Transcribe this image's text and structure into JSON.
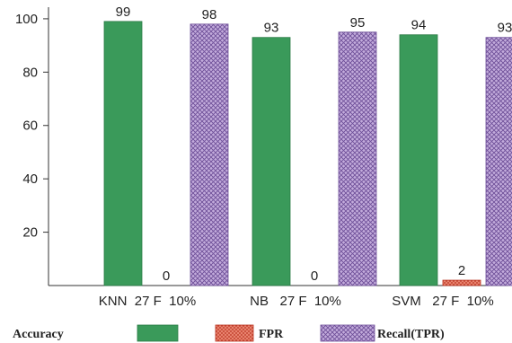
{
  "chart_data": {
    "type": "bar",
    "categories": [
      "KNN  27 F  10%",
      "NB   27 F  10%",
      "SVM   27 F  10%"
    ],
    "series": [
      {
        "name": "Accuracy",
        "values": [
          99,
          93,
          94
        ],
        "color": "#3a9a5a",
        "pattern": "solid"
      },
      {
        "name": "FPR",
        "values": [
          0,
          0,
          2
        ],
        "color": "#e05a40",
        "pattern": "dots"
      },
      {
        "name": "Recall(TPR)",
        "values": [
          98,
          95,
          93
        ],
        "color": "#a98cc9",
        "pattern": "crosshatch"
      }
    ],
    "yticks": [
      20,
      40,
      60,
      80,
      100
    ],
    "ylim": [
      0,
      103
    ],
    "grid": false,
    "legend_position": "bottom"
  }
}
